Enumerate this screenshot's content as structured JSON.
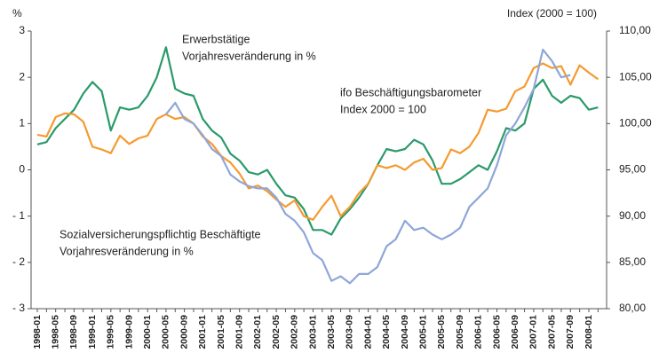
{
  "chart_data": {
    "type": "line",
    "ylabel": "%",
    "y2label": "Index (2000 = 100)",
    "categories": [
      "1998-01",
      null,
      "1998-05",
      null,
      "1998-09",
      null,
      "1999-01",
      null,
      "1999-05",
      null,
      "1999-09",
      null,
      "2000-01",
      null,
      "2000-05",
      null,
      "2000-09",
      null,
      "2001-01",
      null,
      "2001-05",
      null,
      "2001-09",
      null,
      "2002-01",
      null,
      "2002-05",
      null,
      "2002-09",
      null,
      "2003-01",
      null,
      "2003-05",
      null,
      "2003-09",
      null,
      "2004-01",
      null,
      "2004-05",
      null,
      "2004-09",
      null,
      "2005-01",
      null,
      "2005-05",
      null,
      "2005-09",
      null,
      "2006-01",
      null,
      "2006-05",
      null,
      "2006-09",
      null,
      "2007-01",
      null,
      "2007-05",
      null,
      "2007-09",
      null,
      "2008-01",
      null
    ],
    "ylim": [
      -3,
      3
    ],
    "yticks": [
      {
        "value": -3,
        "label": "- 3"
      },
      {
        "value": -2,
        "label": "- 2"
      },
      {
        "value": -1,
        "label": "- 1"
      },
      0,
      1,
      2,
      3
    ],
    "y2lim": [
      80,
      110
    ],
    "y2ticks": [
      {
        "value": 80,
        "label": "80,00"
      },
      {
        "value": 85,
        "label": "85,00"
      },
      {
        "value": 90,
        "label": "90,00"
      },
      {
        "value": 95,
        "label": "95,00"
      },
      {
        "value": 100,
        "label": "100,00"
      },
      {
        "value": 105,
        "label": "105,00"
      },
      {
        "value": 110,
        "label": "110,00"
      }
    ],
    "series": [
      {
        "name": "Erwerbstätige Vorjahresveränderung in %",
        "color": "#2a9a6a",
        "axis": "y",
        "values": [
          0.55,
          0.6,
          0.9,
          1.1,
          1.3,
          1.65,
          1.9,
          1.7,
          0.85,
          1.35,
          1.3,
          1.35,
          1.6,
          2.0,
          2.65,
          1.75,
          1.65,
          1.6,
          1.1,
          0.85,
          0.7,
          0.35,
          0.2,
          -0.05,
          -0.1,
          0.0,
          -0.3,
          -0.55,
          -0.6,
          -0.85,
          -1.3,
          -1.3,
          -1.4,
          -1.05,
          -0.85,
          -0.6,
          -0.3,
          0.1,
          0.45,
          0.4,
          0.45,
          0.65,
          0.55,
          0.2,
          -0.3,
          -0.3,
          -0.2,
          -0.05,
          0.1,
          0.0,
          0.4,
          0.9,
          0.85,
          1.0,
          1.75,
          1.95,
          1.6,
          1.45,
          1.6,
          1.55,
          1.3,
          1.35
        ]
      },
      {
        "name": "ifo Beschäftigungsbarometer Index 2000 = 100",
        "color": "#f59a30",
        "axis": "y2",
        "values": [
          98.8,
          98.6,
          100.7,
          101.1,
          101.0,
          100.2,
          97.5,
          97.2,
          96.8,
          98.7,
          97.8,
          98.4,
          98.7,
          100.5,
          101.0,
          100.5,
          100.7,
          100.0,
          98.6,
          97.8,
          96.5,
          95.8,
          94.6,
          93.0,
          93.3,
          92.7,
          91.8,
          91.0,
          91.7,
          90.0,
          89.6,
          91.0,
          92.2,
          90.0,
          91.0,
          92.5,
          93.5,
          95.5,
          95.2,
          95.5,
          95.0,
          95.8,
          96.2,
          95.0,
          95.2,
          97.2,
          96.8,
          97.5,
          99.0,
          101.5,
          101.3,
          101.6,
          103.5,
          104.0,
          106.0,
          106.5,
          106.0,
          106.2,
          104.2,
          106.3,
          105.5,
          104.8
        ]
      },
      {
        "name": "Sozialversicherungspflichtig Beschäftigte Vorjahresveränderung in %",
        "color": "#8ea6d8",
        "axis": "y",
        "values": [
          null,
          null,
          null,
          null,
          null,
          null,
          null,
          null,
          null,
          null,
          null,
          null,
          null,
          null,
          1.2,
          1.45,
          1.1,
          1.0,
          0.75,
          0.45,
          0.3,
          -0.1,
          -0.25,
          -0.35,
          -0.4,
          -0.4,
          -0.6,
          -0.95,
          -1.1,
          -1.35,
          -1.8,
          -1.95,
          -2.4,
          -2.3,
          -2.45,
          -2.25,
          -2.25,
          -2.1,
          -1.65,
          -1.5,
          -1.1,
          -1.3,
          -1.25,
          -1.4,
          -1.5,
          -1.4,
          -1.25,
          -0.8,
          -0.6,
          -0.4,
          0.1,
          0.75,
          1.0,
          1.35,
          1.75,
          2.6,
          2.35,
          2.0,
          2.05,
          null,
          null,
          null
        ]
      }
    ],
    "annotations": [
      {
        "lines": [
          "Erwerbstätige",
          "Vorjahresveränderung in %"
        ],
        "color": "#2a9a6a"
      },
      {
        "lines": [
          "ifo Beschäftigungsbarometer",
          "Index 2000 = 100"
        ],
        "color": "#f59a30"
      },
      {
        "lines": [
          "Sozialversicherungspflichtig Beschäftigte",
          "Vorjahresveränderung in %"
        ],
        "color": "#8ea6d8"
      }
    ]
  }
}
